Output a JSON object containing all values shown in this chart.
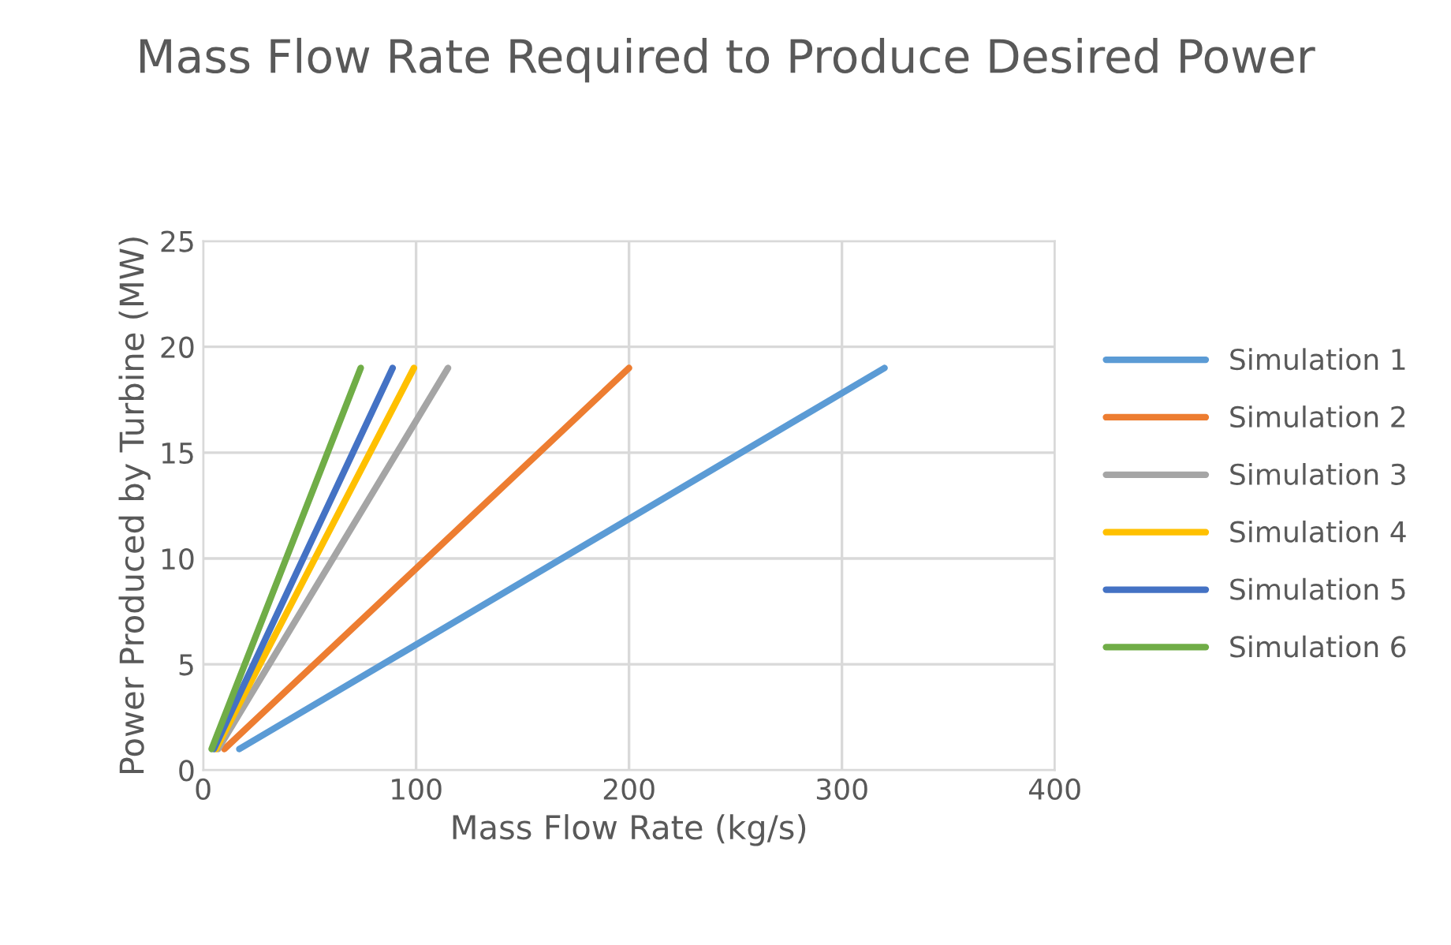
{
  "chart_data": {
    "type": "line",
    "title": "Mass Flow Rate Required to Produce Desired Power",
    "xlabel": "Mass Flow Rate (kg/s)",
    "ylabel": "Power Produced by Turbine (MW)",
    "xlim": [
      0,
      400
    ],
    "xticks": [
      0,
      100,
      200,
      300,
      400
    ],
    "ylim": [
      0,
      25
    ],
    "yticks": [
      0,
      5,
      10,
      15,
      20,
      25
    ],
    "grid": true,
    "legend": "right",
    "marker": "none",
    "line_style": "solid",
    "series": [
      {
        "name": "Simulation 1",
        "color": "#5b9bd5",
        "x": [
          17,
          320
        ],
        "values": [
          1,
          19
        ]
      },
      {
        "name": "Simulation 2",
        "color": "#ed7d31",
        "x": [
          10,
          200
        ],
        "values": [
          1,
          19
        ]
      },
      {
        "name": "Simulation 3",
        "color": "#a5a5a5",
        "x": [
          7,
          115
        ],
        "values": [
          1,
          19
        ]
      },
      {
        "name": "Simulation 4",
        "color": "#ffc000",
        "x": [
          6,
          99
        ],
        "values": [
          1,
          19
        ]
      },
      {
        "name": "Simulation 5",
        "color": "#4472c4",
        "x": [
          5,
          89
        ],
        "values": [
          1,
          19
        ]
      },
      {
        "name": "Simulation 6",
        "color": "#70ad47",
        "x": [
          4,
          74
        ],
        "values": [
          1,
          19
        ]
      }
    ]
  }
}
